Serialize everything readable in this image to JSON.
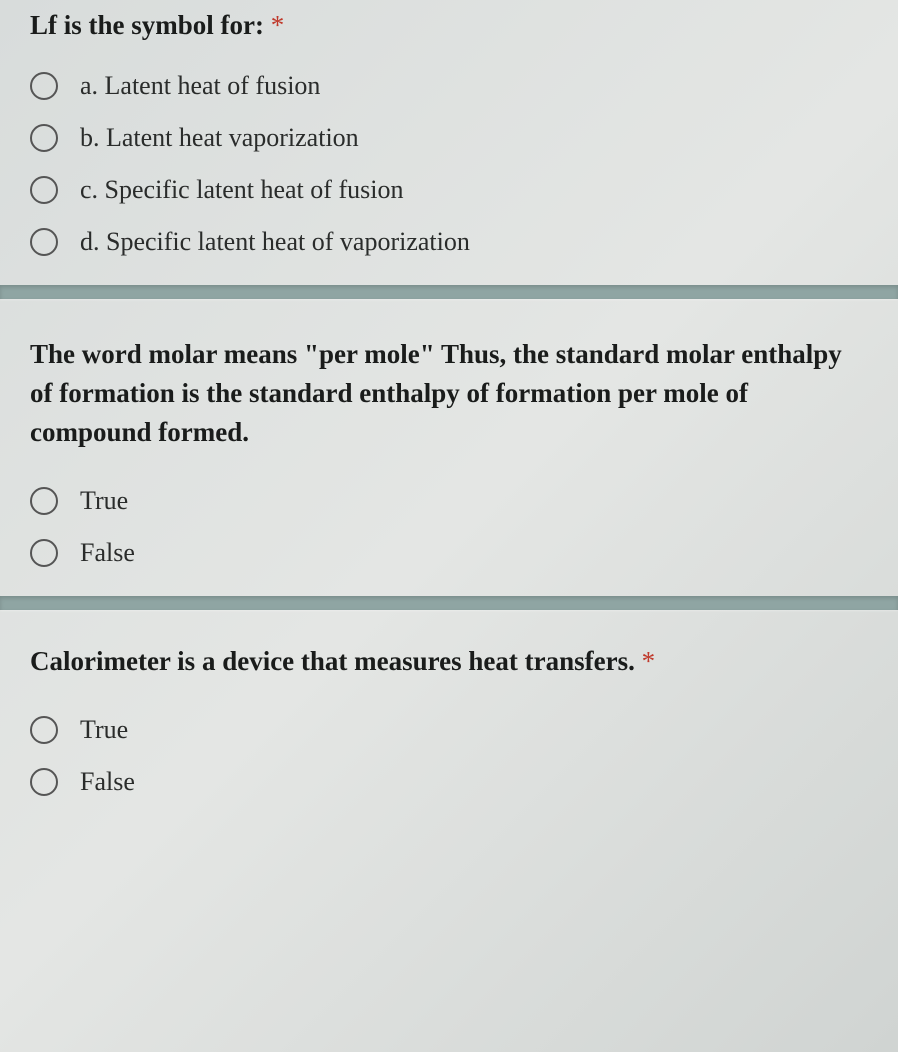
{
  "q1": {
    "title": "Lf is the symbol for:",
    "required": "*",
    "options": [
      "a. Latent heat of fusion",
      "b. Latent heat vaporization",
      "c. Specific latent heat of fusion",
      "d. Specific latent heat of vaporization"
    ]
  },
  "q2": {
    "title": "The word molar means \"per mole\" Thus, the standard molar enthalpy of formation is the standard enthalpy of formation per mole of compound formed.",
    "options": [
      "True",
      "False"
    ]
  },
  "q3": {
    "title": "Calorimeter is a device that measures heat transfers.",
    "required": "*",
    "options": [
      "True",
      "False"
    ]
  },
  "styling": {
    "background_gradient": [
      "#d8dcdb",
      "#e4e6e4",
      "#d0d4d2"
    ],
    "text_color": "#2a2c2b",
    "title_color": "#1a1c1b",
    "asterisk_color": "#c0392b",
    "radio_border_color": "#555555",
    "divider_color": "#8fa5a3",
    "font_family": "Georgia serif",
    "title_fontsize": 27,
    "option_fontsize": 26,
    "radio_size": 28
  }
}
